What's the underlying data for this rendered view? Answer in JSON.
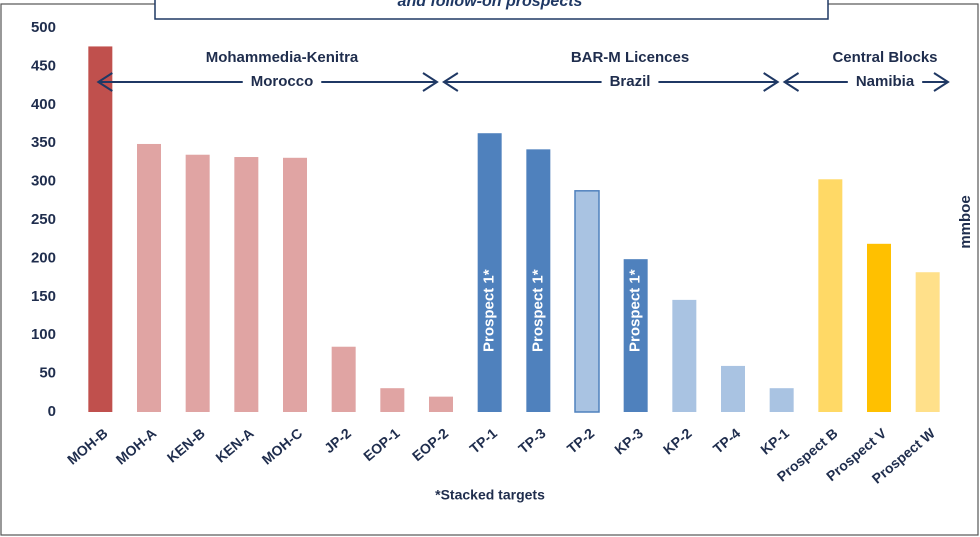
{
  "chart_data": {
    "type": "bar",
    "title": "and follow-on prospects",
    "categories": [
      "MOH-B",
      "MOH-A",
      "KEN-B",
      "KEN-A",
      "MOH-C",
      "JP-2",
      "EOP-1",
      "EOP-2",
      "TP-1",
      "TP-3",
      "TP-2",
      "KP-3",
      "KP-2",
      "TP-4",
      "KP-1",
      "Prospect B",
      "Prospect V",
      "Prospect W"
    ],
    "values": [
      476,
      349,
      335,
      332,
      331,
      85,
      31,
      20,
      363,
      342,
      288,
      199,
      146,
      60,
      31,
      303,
      219,
      182
    ],
    "colors": [
      "#c0504d",
      "#e0a4a3",
      "#e0a4a3",
      "#e0a4a3",
      "#e0a4a3",
      "#e0a4a3",
      "#e0a4a3",
      "#e0a4a3",
      "#4f81bd",
      "#4f81bd",
      "#a9c3e2",
      "#4f81bd",
      "#a9c3e2",
      "#a9c3e2",
      "#a9c3e2",
      "#ffd966",
      "#ffc000",
      "#ffe08a"
    ],
    "bar_labels": [
      null,
      null,
      null,
      null,
      null,
      null,
      null,
      null,
      "Prospect 1*",
      "Prospect 1*",
      null,
      "Prospect 1*",
      null,
      null,
      null,
      null,
      null,
      null
    ],
    "regions": [
      {
        "label": "Mohammedia-Kenitra",
        "sublabel": "Morocco"
      },
      {
        "label": "BAR-M Licences",
        "sublabel": "Brazil"
      },
      {
        "label": "Central Blocks",
        "sublabel": "Namibia"
      }
    ],
    "note": "*Stacked targets",
    "y_label": "mmboe",
    "ylim": [
      0,
      500
    ],
    "yticks": [
      0,
      50,
      100,
      150,
      200,
      250,
      300,
      350,
      400,
      450,
      500
    ],
    "grid": false
  }
}
